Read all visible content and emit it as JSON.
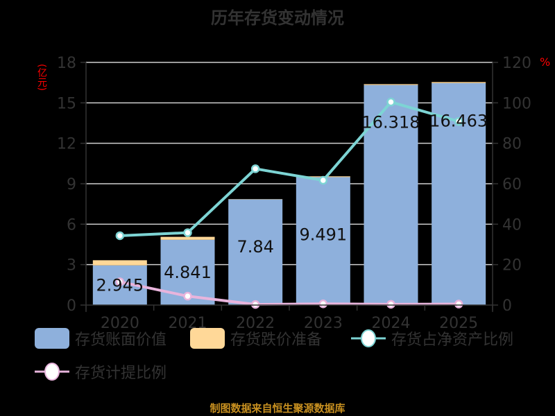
{
  "title": "历年存货变动情况",
  "left_unit": "(亿元)",
  "right_unit": "%",
  "footer": "制图数据来自恒生聚源数据库",
  "colors": {
    "book_value": "#8eb0dc",
    "impairment": "#ffd898",
    "ratio_net_assets": "#7dd4d4",
    "provision_ratio": "#e8b4dc",
    "axis_text": "#333333",
    "grid": "#d0d0d0",
    "unit_label": "#ff0000",
    "footer": "#c89020"
  },
  "legend": [
    {
      "label": "存货账面价值",
      "type": "bar",
      "color": "#8eb0dc"
    },
    {
      "label": "存货跌价准备",
      "type": "bar",
      "color": "#ffd898"
    },
    {
      "label": "存货占净资产比例",
      "type": "line",
      "color": "#7dd4d4"
    },
    {
      "label": "存货计提比例",
      "type": "line",
      "color": "#e8b4dc"
    }
  ],
  "chart_data": {
    "type": "bar",
    "title": "历年存货变动情况",
    "xlabel": "",
    "ylabel": "(亿元)",
    "y2label": "%",
    "categories": [
      "2020",
      "2021",
      "2022",
      "2023",
      "2024",
      "2025"
    ],
    "ylim": [
      0,
      18
    ],
    "yticks": [
      0,
      3,
      6,
      9,
      12,
      15,
      18
    ],
    "y2lim": [
      0,
      120
    ],
    "y2ticks": [
      0,
      20,
      40,
      60,
      80,
      100,
      120
    ],
    "grid": true,
    "legend_position": "bottom",
    "series": [
      {
        "name": "存货账面价值",
        "type": "bar",
        "stack": "inv",
        "axis": "left",
        "values": [
          2.945,
          4.841,
          7.84,
          9.491,
          16.318,
          16.463
        ],
        "labels": [
          "2.945",
          "4.841",
          "7.84",
          "9.491",
          "16.318",
          "16.463"
        ]
      },
      {
        "name": "存货跌价准备",
        "type": "bar",
        "stack": "inv",
        "axis": "left",
        "values": [
          0.38,
          0.22,
          0.02,
          0.06,
          0.07,
          0.08
        ]
      },
      {
        "name": "存货占净资产比例",
        "type": "line",
        "axis": "right",
        "values": [
          34.3,
          35.8,
          67.4,
          61.7,
          100.4,
          90.8
        ]
      },
      {
        "name": "存货计提比例",
        "type": "line",
        "axis": "right",
        "values": [
          11.5,
          4.4,
          0.3,
          0.6,
          0.4,
          0.5
        ]
      }
    ]
  }
}
